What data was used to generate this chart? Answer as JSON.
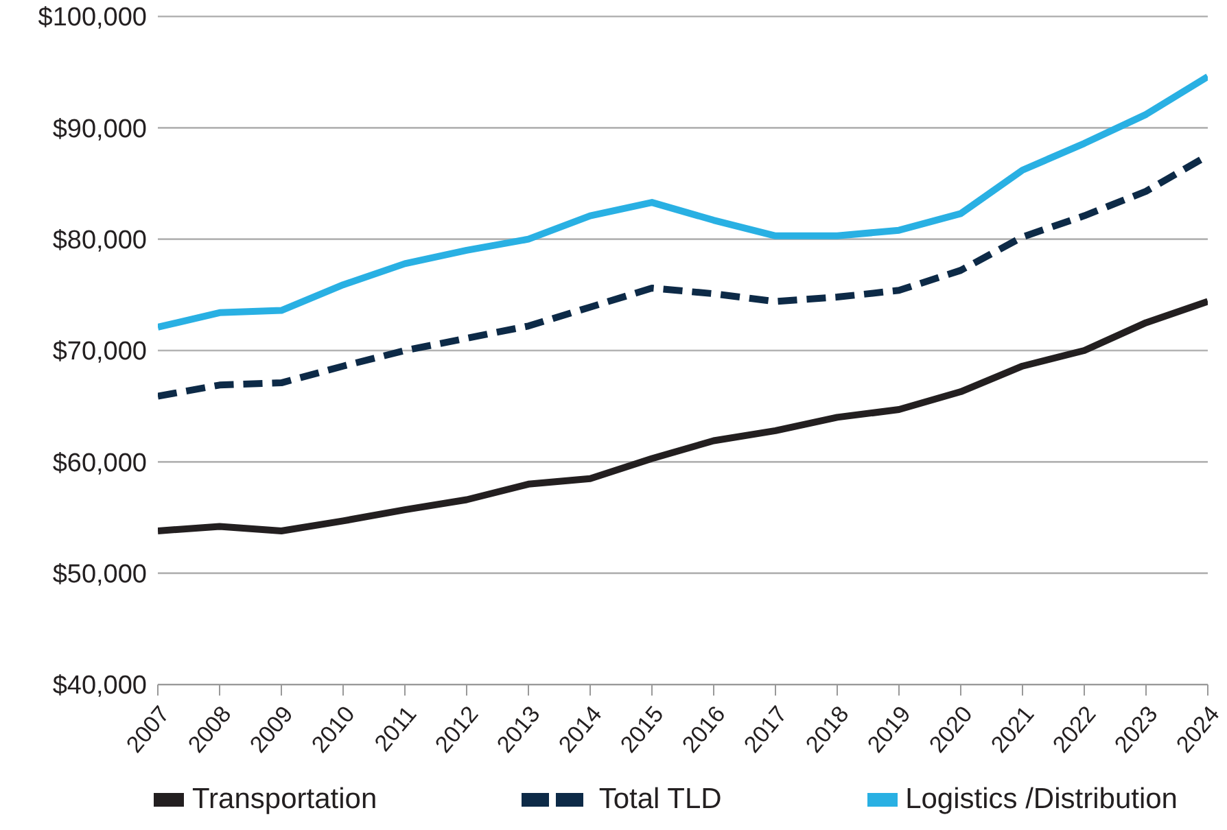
{
  "chart_data": {
    "type": "line",
    "categories": [
      "2007",
      "2008",
      "2009",
      "2010",
      "2011",
      "2012",
      "2013",
      "2014",
      "2015",
      "2016",
      "2017",
      "2018",
      "2019",
      "2020",
      "2021",
      "2022",
      "2023",
      "2024"
    ],
    "series": [
      {
        "name": "Transportation",
        "color": "#231f20",
        "line_style": "solid",
        "values": [
          53800,
          54200,
          53800,
          54700,
          55700,
          56600,
          58000,
          58500,
          60300,
          61900,
          62800,
          64000,
          64700,
          66300,
          68600,
          70000,
          72500,
          74400
        ]
      },
      {
        "name": "Total TLD",
        "color": "#0d2a47",
        "line_style": "dashed",
        "values": [
          65900,
          66900,
          67100,
          68600,
          70000,
          71100,
          72200,
          73900,
          75600,
          75100,
          74400,
          74800,
          75400,
          77200,
          80200,
          82100,
          84300,
          87500
        ]
      },
      {
        "name": "Logistics /Distribution",
        "color": "#29b0e3",
        "line_style": "solid",
        "values": [
          72100,
          73400,
          73600,
          75900,
          77800,
          79000,
          80000,
          82100,
          83300,
          81700,
          80300,
          80300,
          80800,
          82300,
          86200,
          88600,
          91200,
          94600
        ]
      }
    ],
    "ylim": [
      40000,
      100000
    ],
    "yticks": [
      {
        "value": 40000,
        "label": "$40,000"
      },
      {
        "value": 50000,
        "label": "$50,000"
      },
      {
        "value": 60000,
        "label": "$60,000"
      },
      {
        "value": 70000,
        "label": "$70,000"
      },
      {
        "value": 80000,
        "label": "$80,000"
      },
      {
        "value": 90000,
        "label": "$90,000"
      },
      {
        "value": 100000,
        "label": "$100,000"
      }
    ],
    "grid": "y",
    "legend": "bottom",
    "marker": "none"
  }
}
